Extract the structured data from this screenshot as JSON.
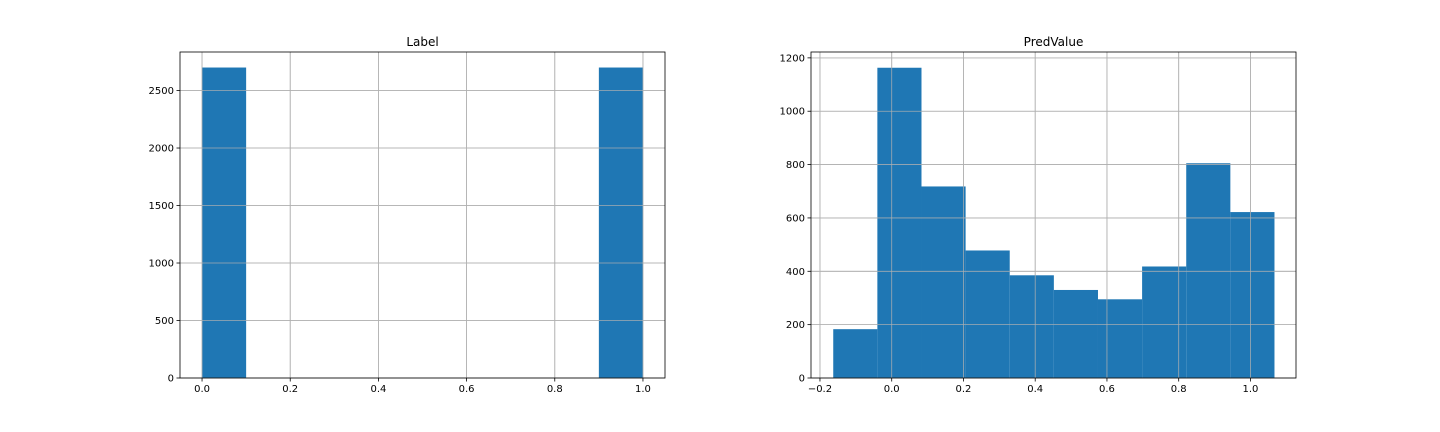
{
  "colors": {
    "bar": "#1f77b4",
    "grid": "#b0b0b0",
    "axis": "#000000",
    "background": "#ffffff"
  },
  "chart_data": [
    {
      "type": "bar",
      "histogram": true,
      "title": "Label",
      "xlabel": "",
      "ylabel": "",
      "xlim": [
        -0.05,
        1.05
      ],
      "ylim": [
        0,
        2835
      ],
      "grid": true,
      "bin_edges": [
        0.0,
        0.1,
        0.2,
        0.3,
        0.4,
        0.5,
        0.6,
        0.7,
        0.8,
        0.9,
        1.0
      ],
      "values": [
        2700,
        0,
        0,
        0,
        0,
        0,
        0,
        0,
        0,
        2700
      ],
      "x_ticks": [
        0.0,
        0.2,
        0.4,
        0.6,
        0.8,
        1.0
      ],
      "x_tick_labels": [
        "0.0",
        "0.2",
        "0.4",
        "0.6",
        "0.8",
        "1.0"
      ],
      "y_ticks": [
        0,
        500,
        1000,
        1500,
        2000,
        2500
      ],
      "y_tick_labels": [
        "0",
        "500",
        "1000",
        "1500",
        "2000",
        "2500"
      ]
    },
    {
      "type": "bar",
      "histogram": true,
      "title": "PredValue",
      "xlabel": "",
      "ylabel": "",
      "xlim": [
        -0.225,
        1.127
      ],
      "ylim": [
        0,
        1222
      ],
      "grid": true,
      "bin_edges": [
        -0.163,
        -0.04,
        0.083,
        0.206,
        0.329,
        0.452,
        0.575,
        0.698,
        0.821,
        0.944,
        1.067
      ],
      "values": [
        183,
        1163,
        718,
        478,
        385,
        330,
        295,
        418,
        805,
        622
      ],
      "x_ticks": [
        -0.2,
        0.0,
        0.2,
        0.4,
        0.6,
        0.8,
        1.0
      ],
      "x_tick_labels": [
        "−0.2",
        "0.0",
        "0.2",
        "0.4",
        "0.6",
        "0.8",
        "1.0"
      ],
      "y_ticks": [
        0,
        200,
        400,
        600,
        800,
        1000,
        1200
      ],
      "y_tick_labels": [
        "0",
        "200",
        "400",
        "600",
        "800",
        "1000",
        "1200"
      ]
    }
  ]
}
